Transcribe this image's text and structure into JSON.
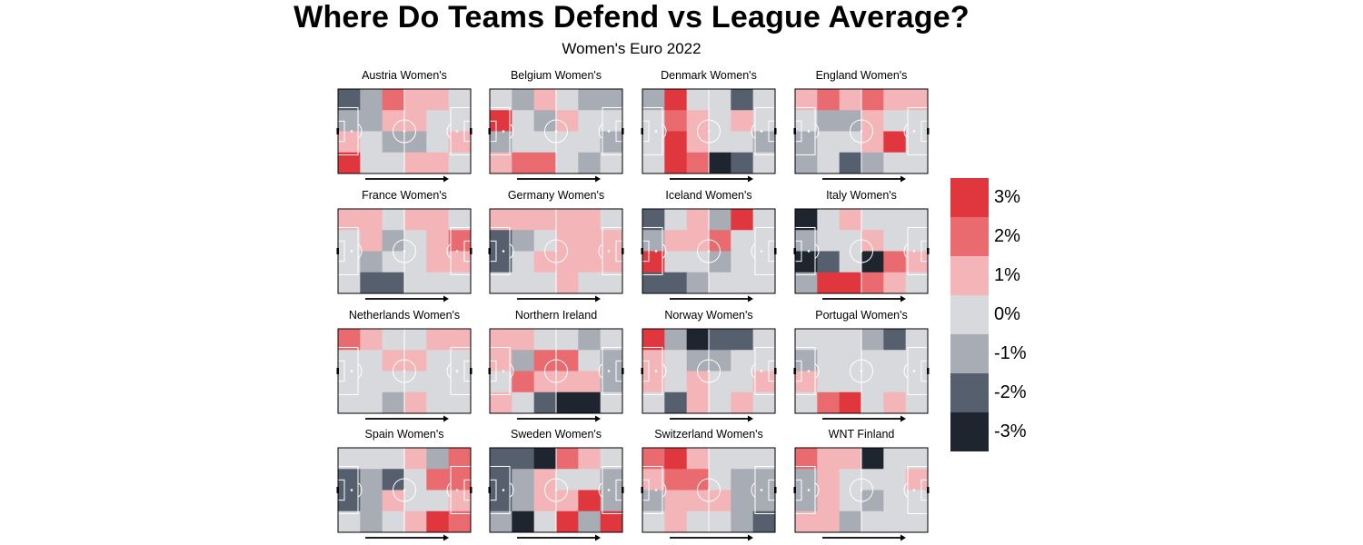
{
  "chart_data": {
    "type": "heatmap",
    "title": "Where Do Teams Defend vs League Average?",
    "subtitle": "Women's Euro 2022",
    "grid": {
      "cols": 6,
      "rows": 4
    },
    "legend": {
      "placement": "right",
      "labels": [
        "3%",
        "2%",
        "1%",
        "0%",
        "-1%",
        "-2%",
        "-3%"
      ],
      "colors": [
        "#e0373f",
        "#e96a6f",
        "#f4b5b8",
        "#d8d9dd",
        "#a8acb4",
        "#555f6d",
        "#1e252f"
      ]
    },
    "panels": [
      {
        "name": "Austria Women's",
        "values": [
          [
            -2,
            -1,
            2,
            1,
            1,
            0
          ],
          [
            -1,
            -1,
            1,
            1,
            0,
            0
          ],
          [
            1,
            0,
            -1,
            -1,
            0,
            1
          ],
          [
            3,
            0,
            0,
            1,
            1,
            0
          ]
        ]
      },
      {
        "name": "Belgium Women's",
        "values": [
          [
            0,
            -1,
            1,
            0,
            -1,
            -1
          ],
          [
            3,
            0,
            -1,
            1,
            0,
            0
          ],
          [
            -1,
            0,
            0,
            0,
            0,
            -1
          ],
          [
            1,
            2,
            2,
            0,
            -1,
            0
          ]
        ]
      },
      {
        "name": "Denmark Women's",
        "values": [
          [
            -1,
            3,
            0,
            0,
            -2,
            0
          ],
          [
            0,
            2,
            1,
            0,
            1,
            0
          ],
          [
            0,
            3,
            1,
            0,
            0,
            -1
          ],
          [
            0,
            3,
            2,
            -3,
            -2,
            0
          ]
        ]
      },
      {
        "name": "England Women's",
        "values": [
          [
            1,
            2,
            1,
            2,
            1,
            1
          ],
          [
            0,
            -1,
            -1,
            1,
            0,
            0
          ],
          [
            -1,
            0,
            0,
            1,
            3,
            0
          ],
          [
            -1,
            0,
            -2,
            -1,
            0,
            0
          ]
        ]
      },
      {
        "name": "France Women's",
        "values": [
          [
            1,
            1,
            0,
            1,
            1,
            0
          ],
          [
            0,
            1,
            -1,
            0,
            1,
            2
          ],
          [
            0,
            -1,
            0,
            0,
            1,
            1
          ],
          [
            0,
            -2,
            -2,
            0,
            0,
            0
          ]
        ]
      },
      {
        "name": "Germany Women's",
        "values": [
          [
            1,
            1,
            1,
            1,
            1,
            0
          ],
          [
            -2,
            -1,
            0,
            1,
            1,
            1
          ],
          [
            -2,
            0,
            1,
            1,
            1,
            1
          ],
          [
            0,
            0,
            0,
            1,
            0,
            0
          ]
        ]
      },
      {
        "name": "Iceland Women's",
        "values": [
          [
            -2,
            0,
            1,
            -1,
            3,
            0
          ],
          [
            -1,
            1,
            1,
            2,
            0,
            0
          ],
          [
            3,
            0,
            0,
            -1,
            0,
            0
          ],
          [
            -2,
            -2,
            -1,
            0,
            0,
            0
          ]
        ]
      },
      {
        "name": "Italy Women's",
        "values": [
          [
            -3,
            0,
            1,
            0,
            0,
            0
          ],
          [
            -1,
            0,
            0,
            1,
            0,
            0
          ],
          [
            -3,
            -2,
            0,
            -3,
            2,
            1
          ],
          [
            -1,
            3,
            3,
            2,
            1,
            0
          ]
        ]
      },
      {
        "name": "Netherlands Women's",
        "values": [
          [
            2,
            1,
            0,
            0,
            1,
            1
          ],
          [
            0,
            0,
            1,
            1,
            0,
            0
          ],
          [
            0,
            0,
            0,
            0,
            0,
            0
          ],
          [
            0,
            0,
            -1,
            1,
            0,
            0
          ]
        ]
      },
      {
        "name": "Northern Ireland",
        "values": [
          [
            1,
            1,
            0,
            0,
            -1,
            0
          ],
          [
            1,
            -1,
            2,
            2,
            0,
            -1
          ],
          [
            0,
            2,
            1,
            1,
            1,
            -1
          ],
          [
            1,
            0,
            -2,
            -3,
            -3,
            0
          ]
        ]
      },
      {
        "name": "Norway Women's",
        "values": [
          [
            3,
            -1,
            -3,
            -2,
            -2,
            0
          ],
          [
            1,
            0,
            -1,
            -1,
            0,
            0
          ],
          [
            1,
            0,
            1,
            0,
            0,
            1
          ],
          [
            0,
            -2,
            1,
            0,
            1,
            0
          ]
        ]
      },
      {
        "name": "Portugal Women's",
        "values": [
          [
            0,
            0,
            0,
            -1,
            -2,
            0
          ],
          [
            -1,
            0,
            0,
            0,
            0,
            0
          ],
          [
            1,
            0,
            0,
            0,
            0,
            0
          ],
          [
            0,
            2,
            3,
            0,
            1,
            0
          ]
        ]
      },
      {
        "name": "Spain Women's",
        "values": [
          [
            0,
            0,
            0,
            1,
            -1,
            2
          ],
          [
            -2,
            -1,
            -2,
            0,
            2,
            2
          ],
          [
            -2,
            -1,
            1,
            0,
            0,
            1
          ],
          [
            0,
            -1,
            0,
            1,
            3,
            2
          ]
        ]
      },
      {
        "name": "Sweden Women's",
        "values": [
          [
            -2,
            -2,
            -3,
            2,
            1,
            0
          ],
          [
            -2,
            -1,
            1,
            0,
            0,
            -1
          ],
          [
            -2,
            -1,
            1,
            1,
            3,
            -1
          ],
          [
            -1,
            -3,
            0,
            3,
            -1,
            3
          ]
        ]
      },
      {
        "name": "Switzerland Women's",
        "values": [
          [
            2,
            3,
            1,
            0,
            0,
            0
          ],
          [
            1,
            2,
            2,
            0,
            -1,
            -1
          ],
          [
            -1,
            1,
            1,
            1,
            -1,
            -1
          ],
          [
            0,
            1,
            0,
            0,
            -1,
            -2
          ]
        ]
      },
      {
        "name": "WNT Finland",
        "values": [
          [
            2,
            1,
            1,
            -3,
            0,
            0
          ],
          [
            -1,
            1,
            0,
            0,
            0,
            1
          ],
          [
            -1,
            1,
            0,
            -1,
            0,
            0
          ],
          [
            1,
            1,
            -1,
            0,
            0,
            0
          ]
        ]
      }
    ]
  }
}
